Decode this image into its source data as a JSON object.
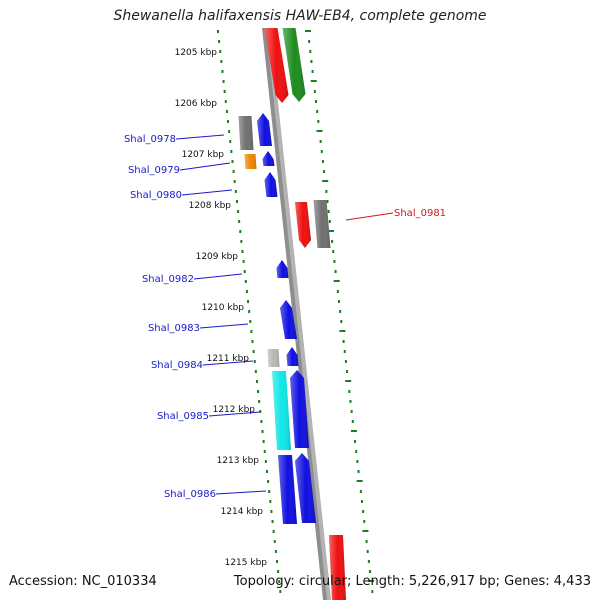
{
  "title": "Shewanella halifaxensis HAW-EB4, complete genome",
  "footer": {
    "accession": "Accession: NC_010334",
    "summary": "Topology: circular; Length: 5,226,917 bp; Genes: 4,433"
  },
  "scale_labels": [
    "1205 kbp",
    "1206 kbp",
    "1207 kbp",
    "1208 kbp",
    "1209 kbp",
    "1210 kbp",
    "1211 kbp",
    "1212 kbp",
    "1213 kbp",
    "1214 kbp",
    "1215 kbp"
  ],
  "gene_labels": [
    {
      "text": "Shal_0978",
      "color": "#1a1acc"
    },
    {
      "text": "Shal_0979",
      "color": "#1a1acc"
    },
    {
      "text": "Shal_0980",
      "color": "#1a1acc"
    },
    {
      "text": "Shal_0981",
      "color": "#cc1a1a"
    },
    {
      "text": "Shal_0982",
      "color": "#1a1acc"
    },
    {
      "text": "Shal_0983",
      "color": "#1a1acc"
    },
    {
      "text": "Shal_0984",
      "color": "#1a1acc"
    },
    {
      "text": "Shal_0985",
      "color": "#1a1acc"
    },
    {
      "text": "Shal_0986",
      "color": "#1a1acc"
    }
  ],
  "colors": {
    "backbone": "#8a8a8a",
    "ticks": "#1e7d1e",
    "blue": "#1010e0",
    "red": "#ee1010",
    "green": "#1e8c1e",
    "gray": "#707070",
    "lightgray": "#b8b8b8",
    "orange": "#ee8800",
    "cyan": "#10e6e6"
  }
}
